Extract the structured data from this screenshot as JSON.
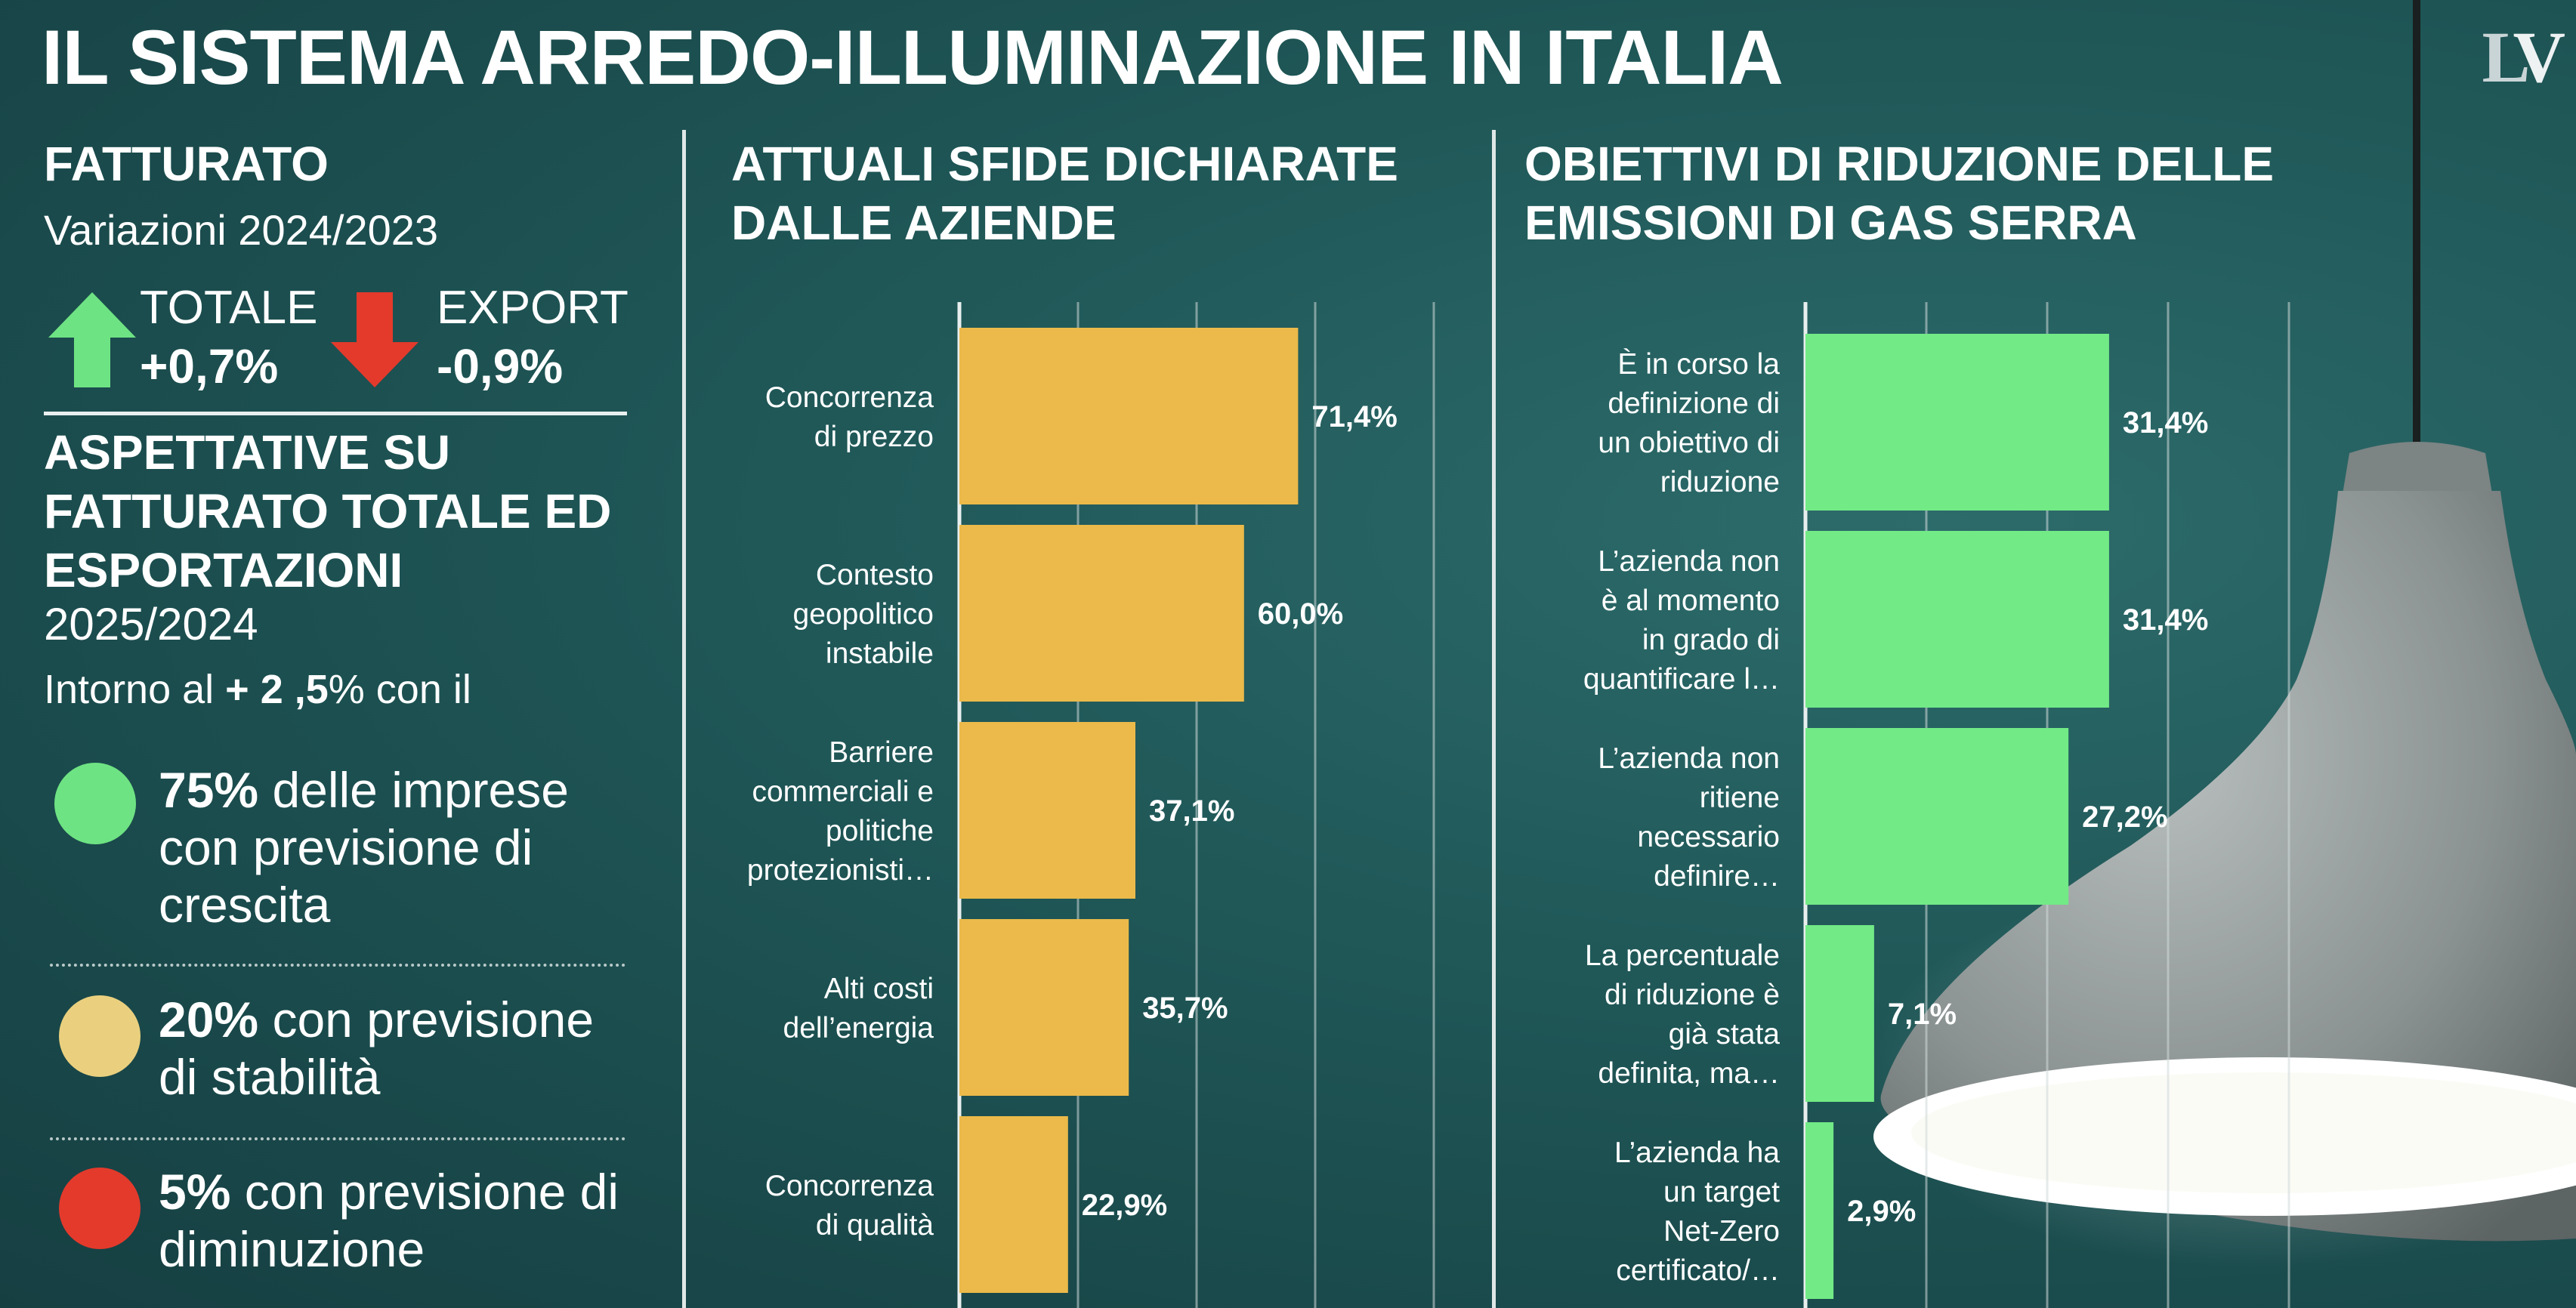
{
  "title": "IL SISTEMA ARREDO-ILLUMINAZIONE IN ITALIA",
  "logo": {
    "part1": "L",
    "part2": "V"
  },
  "fatturato": {
    "title": "FATTURATO",
    "subtitle": "Variazioni 2024/2023",
    "totale_label": "TOTALE",
    "totale_value": "+0,7%",
    "export_label": "EXPORT",
    "export_value": "-0,9%"
  },
  "aspettative": {
    "title": "ASPETTATIVE SU FATTURATO TOTALE ED ESPORTAZIONI",
    "year": "2025/2024",
    "note_prefix": "Intorno al ",
    "note_value": "+ 2 ,5",
    "note_suffix": "% con il",
    "items": [
      {
        "pct": "75%",
        "text": " delle imprese con previsione di crescita",
        "color": "#6ee383"
      },
      {
        "pct": "20%",
        "text": " con previsione di stabilità",
        "color": "#ead07e"
      },
      {
        "pct": "5%",
        "text": " con previsione di diminuzione",
        "color": "#e33a2c"
      }
    ]
  },
  "colors": {
    "arrow_up": "#6ee383",
    "arrow_down": "#e33a2c",
    "bar_challenges": "#ebba4a",
    "bar_emissions": "#72ea86"
  },
  "chart_data": [
    {
      "type": "bar",
      "orientation": "horizontal",
      "title": "ATTUALI SFIDE DICHIARATE DALLE AZIENDE",
      "categories": [
        "Concorrenza di prezzo",
        "Contesto geopolitico instabile",
        "Barriere commerciali e politiche protezionisti…",
        "Alti costi dell’energia",
        "Concorrenza di qualità"
      ],
      "category_lines": [
        [
          "Concorrenza",
          "di prezzo"
        ],
        [
          "Contesto",
          "geopolitico",
          "instabile"
        ],
        [
          "Barriere",
          "commerciali e",
          "politiche",
          "protezionisti…"
        ],
        [
          "Alti costi",
          "dell’energia"
        ],
        [
          "Concorrenza",
          "di qualità"
        ]
      ],
      "values": [
        71.4,
        60.0,
        37.1,
        35.7,
        22.9
      ],
      "labels": [
        "71,4%",
        "60,0%",
        "37,1%",
        "35,7%",
        "22,9%"
      ],
      "xlim": [
        0,
        100
      ],
      "grid": true
    },
    {
      "type": "bar",
      "orientation": "horizontal",
      "title": "OBIETTIVI DI RIDUZIONE DELLE EMISSIONI DI GAS SERRA",
      "categories": [
        "È in corso la definizione di un obiettivo di riduzione",
        "L’azienda non è al momento in grado di quantificare l…",
        "L’azienda non ritiene necessario definire…",
        "La percentuale di riduzione è già stata definita, ma…",
        "L’azienda ha un target Net-Zero certificato/…"
      ],
      "category_lines": [
        [
          "È in corso la",
          "definizione di",
          "un obiettivo di",
          "riduzione"
        ],
        [
          "L’azienda non",
          "è al momento",
          "in grado di",
          "quantificare l…"
        ],
        [
          "L’azienda non",
          "ritiene",
          "necessario",
          "definire…"
        ],
        [
          "La percentuale",
          "di riduzione è",
          "già stata",
          "definita, ma…"
        ],
        [
          "L’azienda ha",
          "un target",
          "Net-Zero",
          "certificato/…"
        ]
      ],
      "values": [
        31.4,
        31.4,
        27.2,
        7.1,
        2.9
      ],
      "labels": [
        "31,4%",
        "31,4%",
        "27,2%",
        "7,1%",
        "2,9%"
      ],
      "xlim": [
        0,
        50
      ],
      "grid": true
    }
  ]
}
